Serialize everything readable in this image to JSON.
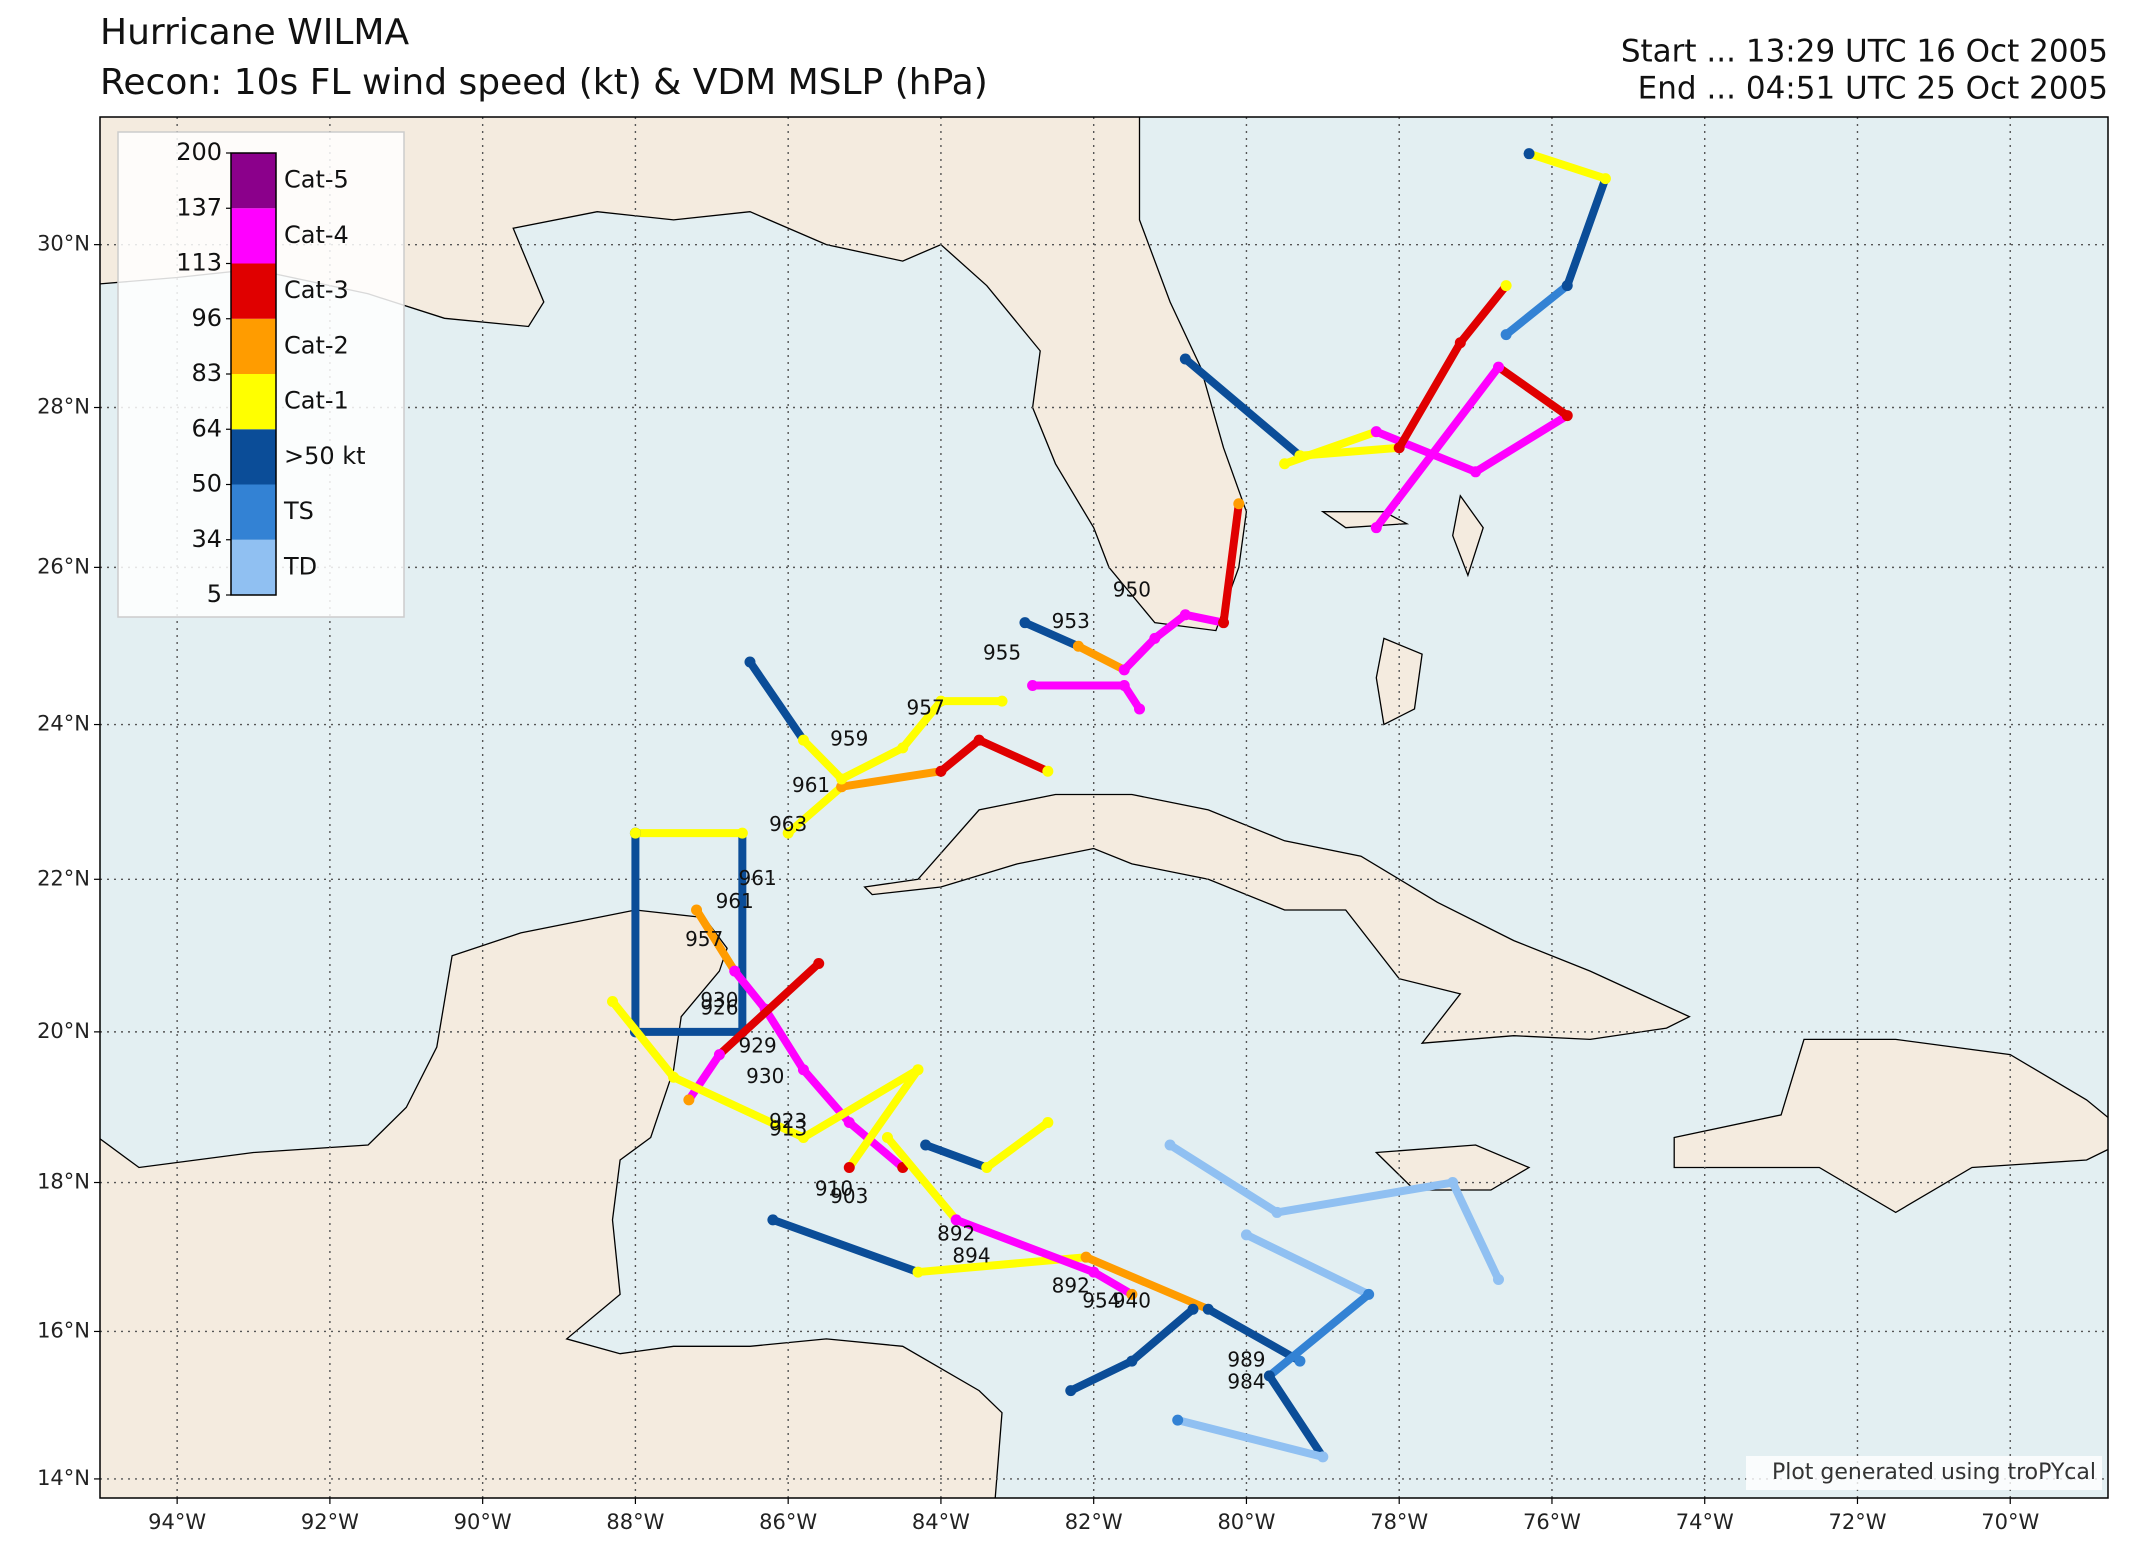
{
  "map": {
    "title": "Hurricane WILMA",
    "subtitle": "Recon: 10s FL wind speed (kt) & VDM MSLP (hPa)",
    "start": "Start ... 13:29 UTC 16 Oct 2005",
    "end": "End ... 04:51 UTC 25 Oct 2005",
    "credit": "Plot generated using troPYcal",
    "xlim": [
      -95.01,
      -68.72
    ],
    "ylim": [
      13.74,
      31.54
    ],
    "grid": true,
    "xticks": [
      {
        "value": -94,
        "label": "94°W"
      },
      {
        "value": -92,
        "label": "92°W"
      },
      {
        "value": -90,
        "label": "90°W"
      },
      {
        "value": -88,
        "label": "88°W"
      },
      {
        "value": -86,
        "label": "86°W"
      },
      {
        "value": -84,
        "label": "84°W"
      },
      {
        "value": -82,
        "label": "82°W"
      },
      {
        "value": -80,
        "label": "80°W"
      },
      {
        "value": -78,
        "label": "78°W"
      },
      {
        "value": -76,
        "label": "76°W"
      },
      {
        "value": -74,
        "label": "74°W"
      },
      {
        "value": -72,
        "label": "72°W"
      },
      {
        "value": -70,
        "label": "70°W"
      }
    ],
    "yticks": [
      {
        "value": 14,
        "label": "14°N"
      },
      {
        "value": 16,
        "label": "16°N"
      },
      {
        "value": 18,
        "label": "18°N"
      },
      {
        "value": 20,
        "label": "20°N"
      },
      {
        "value": 22,
        "label": "22°N"
      },
      {
        "value": 24,
        "label": "24°N"
      },
      {
        "value": 26,
        "label": "26°N"
      },
      {
        "value": 28,
        "label": "28°N"
      },
      {
        "value": 30,
        "label": "30°N"
      }
    ],
    "colorbar": {
      "levels": [
        5,
        34,
        50,
        64,
        83,
        96,
        113,
        137,
        200
      ],
      "categories": [
        {
          "label": "TD",
          "color": "#90c0f2"
        },
        {
          "label": "TS",
          "color": "#3382d4"
        },
        {
          "label": ">50 kt",
          "color": "#0b4d98"
        },
        {
          "label": "Cat-1",
          "color": "#ffff00"
        },
        {
          "label": "Cat-2",
          "color": "#ff9c00"
        },
        {
          "label": "Cat-3",
          "color": "#e00000"
        },
        {
          "label": "Cat-4",
          "color": "#ff00ff"
        },
        {
          "label": "Cat-5",
          "color": "#8b008b"
        }
      ]
    },
    "tracks": [
      {
        "lon": [
          -88,
          -88,
          -86.6,
          -86.6,
          -88
        ],
        "lat": [
          22.6,
          20,
          20,
          22.6,
          22.6
        ],
        "wind": [
          55,
          55,
          60,
          75,
          70
        ]
      },
      {
        "lon": [
          -87.2,
          -86.7,
          -86.3,
          -85.8,
          -85.2,
          -84.5
        ],
        "lat": [
          21.6,
          20.8,
          20.3,
          19.5,
          18.8,
          18.2
        ],
        "wind": [
          90,
          125,
          130,
          120,
          125,
          110
        ]
      },
      {
        "lon": [
          -85.6,
          -86.9,
          -87.3
        ],
        "lat": [
          20.9,
          19.7,
          19.1
        ],
        "wind": [
          100,
          120,
          95
        ]
      },
      {
        "lon": [
          -86,
          -85.3,
          -84,
          -83.5,
          -82.6
        ],
        "lat": [
          22.6,
          23.2,
          23.4,
          23.8,
          23.4
        ],
        "wind": [
          70,
          85,
          100,
          110,
          70
        ]
      },
      {
        "lon": [
          -86.5,
          -85.8,
          -85.3,
          -84.5,
          -84,
          -83.2
        ],
        "lat": [
          24.8,
          23.8,
          23.3,
          23.7,
          24.3,
          24.3
        ],
        "wind": [
          55,
          70,
          65,
          70,
          72,
          70
        ]
      },
      {
        "lon": [
          -82.9,
          -82.2,
          -81.6,
          -81.2,
          -80.8,
          -80.3,
          -80.1
        ],
        "lat": [
          25.3,
          25,
          24.7,
          25.1,
          25.4,
          25.3,
          26.8
        ],
        "wind": [
          55,
          90,
          115,
          130,
          115,
          105,
          90
        ]
      },
      {
        "lon": [
          -82.8,
          -81.6,
          -81.4
        ],
        "lat": [
          24.5,
          24.5,
          24.2
        ],
        "wind": [
          120,
          135,
          130
        ]
      },
      {
        "lon": [
          -79.5,
          -78.3,
          -77,
          -75.8,
          -76.7,
          -78.3
        ],
        "lat": [
          27.3,
          27.7,
          27.2,
          27.9,
          28.5,
          26.5
        ],
        "wind": [
          80,
          125,
          125,
          110,
          115,
          130
        ]
      },
      {
        "lon": [
          -80.8,
          -79.3,
          -78,
          -77.2,
          -76.6
        ],
        "lat": [
          28.6,
          27.4,
          27.5,
          28.8,
          29.5
        ],
        "wind": [
          55,
          75,
          105,
          100,
          70
        ]
      },
      {
        "lon": [
          -76.6,
          -75.8,
          -75.3,
          -76.3
        ],
        "lat": [
          28.9,
          29.5,
          30.8,
          31.1
        ],
        "wind": [
          40,
          55,
          70,
          55
        ]
      },
      {
        "lon": [
          -86.2,
          -84.3,
          -82.1,
          -80.5,
          -79.3
        ],
        "lat": [
          17.5,
          16.8,
          17,
          16.3,
          15.6
        ],
        "wind": [
          55,
          70,
          85,
          55,
          45
        ]
      },
      {
        "lon": [
          -84.7,
          -83.8,
          -82,
          -81.5
        ],
        "lat": [
          18.6,
          17.5,
          16.8,
          16.5
        ],
        "wind": [
          80,
          135,
          130,
          95
        ]
      },
      {
        "lon": [
          -80,
          -78.4,
          -79.7,
          -79,
          -80.9
        ],
        "lat": [
          17.3,
          16.5,
          15.4,
          14.3,
          14.8
        ],
        "wind": [
          30,
          45,
          50,
          30,
          40
        ]
      },
      {
        "lon": [
          -81,
          -79.6,
          -77.3,
          -76.7
        ],
        "lat": [
          18.5,
          17.6,
          18,
          16.7
        ],
        "wind": [
          25,
          28,
          30,
          25
        ]
      },
      {
        "lon": [
          -88.3,
          -87.5,
          -85.8,
          -84.3,
          -85.2
        ],
        "lat": [
          20.4,
          19.4,
          18.6,
          19.5,
          18.2
        ],
        "wind": [
          70,
          75,
          72,
          70,
          105
        ]
      },
      {
        "lon": [
          -84.2,
          -83.4,
          -82.6
        ],
        "lat": [
          18.5,
          18.2,
          18.8
        ],
        "wind": [
          60,
          75,
          65
        ]
      },
      {
        "lon": [
          -82.3,
          -81.5,
          -80.7
        ],
        "lat": [
          15.2,
          15.6,
          16.3
        ],
        "wind": [
          55,
          55,
          50
        ]
      }
    ],
    "pressure_labels": [
      {
        "value": 950,
        "lon": -81.5,
        "lat": 25.7
      },
      {
        "value": 953,
        "lon": -82.3,
        "lat": 25.3
      },
      {
        "value": 955,
        "lon": -83.2,
        "lat": 24.9
      },
      {
        "value": 957,
        "lon": -84.2,
        "lat": 24.2
      },
      {
        "value": 959,
        "lon": -85.2,
        "lat": 23.8
      },
      {
        "value": 961,
        "lon": -85.7,
        "lat": 23.2
      },
      {
        "value": 963,
        "lon": -86.0,
        "lat": 22.7
      },
      {
        "value": 961,
        "lon": -86.4,
        "lat": 22.0
      },
      {
        "value": 961,
        "lon": -86.7,
        "lat": 21.7
      },
      {
        "value": 957,
        "lon": -87.1,
        "lat": 21.2
      },
      {
        "value": 930,
        "lon": -86.9,
        "lat": 20.4
      },
      {
        "value": 926,
        "lon": -86.9,
        "lat": 20.3
      },
      {
        "value": 929,
        "lon": -86.4,
        "lat": 19.8
      },
      {
        "value": 930,
        "lon": -86.3,
        "lat": 19.4
      },
      {
        "value": 923,
        "lon": -86.0,
        "lat": 18.8
      },
      {
        "value": 913,
        "lon": -86.0,
        "lat": 18.7
      },
      {
        "value": 910,
        "lon": -85.4,
        "lat": 17.9
      },
      {
        "value": 903,
        "lon": -85.2,
        "lat": 17.8
      },
      {
        "value": 892,
        "lon": -83.8,
        "lat": 17.3
      },
      {
        "value": 894,
        "lon": -83.6,
        "lat": 17.0
      },
      {
        "value": 892,
        "lon": -82.3,
        "lat": 16.6
      },
      {
        "value": 954,
        "lon": -81.9,
        "lat": 16.4
      },
      {
        "value": 940,
        "lon": -81.5,
        "lat": 16.4
      },
      {
        "value": 989,
        "lon": -80.0,
        "lat": 15.6
      },
      {
        "value": 984,
        "lon": -80.0,
        "lat": 15.3
      }
    ]
  }
}
